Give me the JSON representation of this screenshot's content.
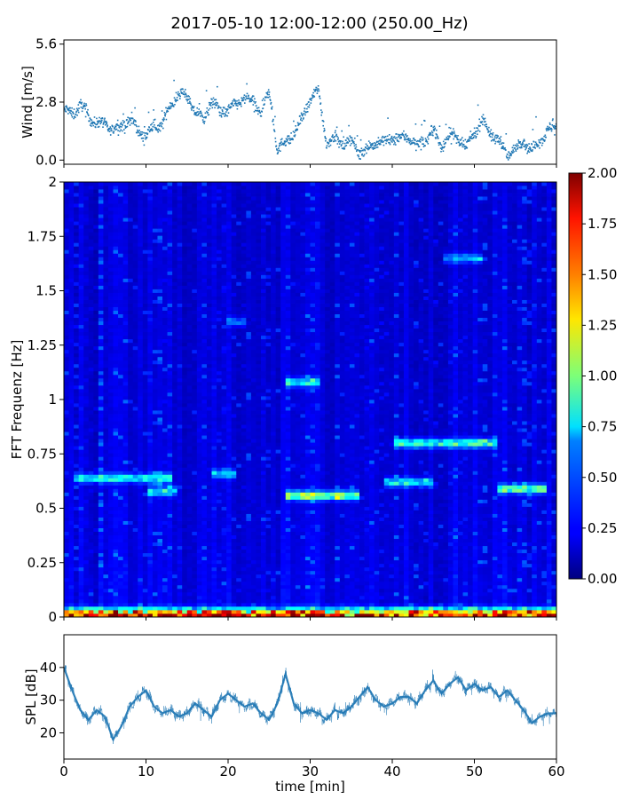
{
  "chart_data": [
    {
      "type": "scatter",
      "panel": "wind",
      "title": "2017-05-10 12:00-12:00 (250.00_Hz)",
      "xlabel": "",
      "ylabel": "Wind [m/s]",
      "xlim": [
        0,
        60
      ],
      "ylim": [
        -0.2,
        5.8
      ],
      "yticks": [
        0.0,
        2.8,
        5.6
      ],
      "ytick_labels": [
        "0.0",
        "2.8",
        "5.6"
      ],
      "color": "#1f77b4",
      "trend": {
        "x": [
          0,
          1,
          2,
          3,
          4,
          5,
          6,
          7,
          8,
          9,
          10,
          11,
          12,
          13,
          14,
          15,
          16,
          17,
          18,
          19,
          20,
          21,
          22,
          23,
          24,
          25,
          26,
          27,
          28,
          29,
          30,
          31,
          32,
          33,
          34,
          35,
          36,
          37,
          38,
          39,
          40,
          41,
          42,
          43,
          44,
          45,
          46,
          47,
          48,
          49,
          50,
          51,
          52,
          53,
          54,
          55,
          56,
          57,
          58,
          59,
          60
        ],
        "y": [
          2.4,
          2.2,
          2.7,
          2.1,
          1.8,
          1.7,
          1.5,
          1.6,
          2.0,
          1.4,
          1.2,
          1.6,
          1.8,
          2.6,
          3.3,
          3.0,
          2.4,
          1.9,
          2.9,
          2.3,
          2.5,
          2.6,
          3.1,
          2.7,
          2.4,
          3.2,
          0.6,
          0.8,
          1.3,
          1.9,
          3.0,
          3.3,
          0.9,
          1.0,
          0.8,
          0.9,
          0.4,
          0.5,
          0.9,
          0.8,
          1.1,
          1.0,
          1.2,
          0.6,
          1.0,
          1.4,
          0.7,
          1.2,
          1.1,
          0.5,
          1.4,
          1.9,
          1.3,
          0.9,
          0.3,
          0.5,
          1.0,
          0.4,
          1.0,
          1.4,
          1.6
        ]
      }
    },
    {
      "type": "heatmap",
      "panel": "spectrogram",
      "xlabel": "",
      "ylabel": "FFT Frequenz [Hz]",
      "xlim": [
        0,
        60
      ],
      "ylim": [
        0,
        2
      ],
      "yticks": [
        0,
        0.25,
        0.5,
        0.75,
        1,
        1.25,
        1.5,
        1.75,
        2
      ],
      "ytick_labels": [
        "0",
        "0.25",
        "0.5",
        "0.75",
        "1",
        "1.25",
        "1.5",
        "1.75",
        "2"
      ],
      "colormap": "jet",
      "colorbar": {
        "range": [
          0,
          2
        ],
        "ticks": [
          0.0,
          0.25,
          0.5,
          0.75,
          1.0,
          1.25,
          1.5,
          1.75,
          2.0
        ],
        "tick_labels": [
          "0.00",
          "0.25",
          "0.50",
          "0.75",
          "1.00",
          "1.25",
          "1.50",
          "1.75",
          "2.00"
        ]
      },
      "bands": [
        {
          "f": 0.64,
          "x": [
            1,
            13
          ],
          "v": 0.7
        },
        {
          "f": 0.58,
          "x": [
            10,
            14
          ],
          "v": 0.65
        },
        {
          "f": 0.56,
          "x": [
            27,
            36
          ],
          "v": 1.0
        },
        {
          "f": 0.62,
          "x": [
            39,
            45
          ],
          "v": 0.7
        },
        {
          "f": 0.8,
          "x": [
            40,
            53
          ],
          "v": 0.8
        },
        {
          "f": 0.59,
          "x": [
            53,
            59
          ],
          "v": 0.9
        },
        {
          "f": 1.08,
          "x": [
            27,
            31
          ],
          "v": 0.7
        },
        {
          "f": 1.65,
          "x": [
            46,
            51
          ],
          "v": 0.5
        },
        {
          "f": 0.66,
          "x": [
            18,
            21
          ],
          "v": 0.55
        },
        {
          "f": 1.36,
          "x": [
            20,
            22
          ],
          "v": 0.4
        }
      ]
    },
    {
      "type": "line",
      "panel": "spl",
      "xlabel": "time [min]",
      "ylabel": "SPL [dB]",
      "xlim": [
        0,
        60
      ],
      "ylim": [
        12,
        50
      ],
      "xticks": [
        0,
        10,
        20,
        30,
        40,
        50,
        60
      ],
      "xtick_labels": [
        "0",
        "10",
        "20",
        "30",
        "40",
        "50",
        "60"
      ],
      "yticks": [
        20,
        30,
        40
      ],
      "ytick_labels": [
        "20",
        "30",
        "40"
      ],
      "color": "#1f77b4",
      "x": [
        0,
        1,
        2,
        3,
        4,
        5,
        6,
        7,
        8,
        9,
        10,
        11,
        12,
        13,
        14,
        15,
        16,
        17,
        18,
        19,
        20,
        21,
        22,
        23,
        24,
        25,
        26,
        27,
        28,
        29,
        30,
        31,
        32,
        33,
        34,
        35,
        36,
        37,
        38,
        39,
        40,
        41,
        42,
        43,
        44,
        45,
        46,
        47,
        48,
        49,
        50,
        51,
        52,
        53,
        54,
        55,
        56,
        57,
        58,
        59,
        60
      ],
      "y": [
        40,
        33,
        27,
        24,
        27,
        25,
        18,
        22,
        28,
        31,
        33,
        28,
        26,
        27,
        25,
        26,
        29,
        27,
        25,
        30,
        32,
        30,
        28,
        29,
        26,
        24,
        29,
        38,
        29,
        26,
        27,
        26,
        24,
        27,
        26,
        28,
        31,
        34,
        30,
        28,
        29,
        31,
        31,
        29,
        33,
        36,
        32,
        35,
        37,
        33,
        35,
        33,
        34,
        31,
        33,
        30,
        27,
        23,
        25,
        26,
        26
      ]
    }
  ]
}
